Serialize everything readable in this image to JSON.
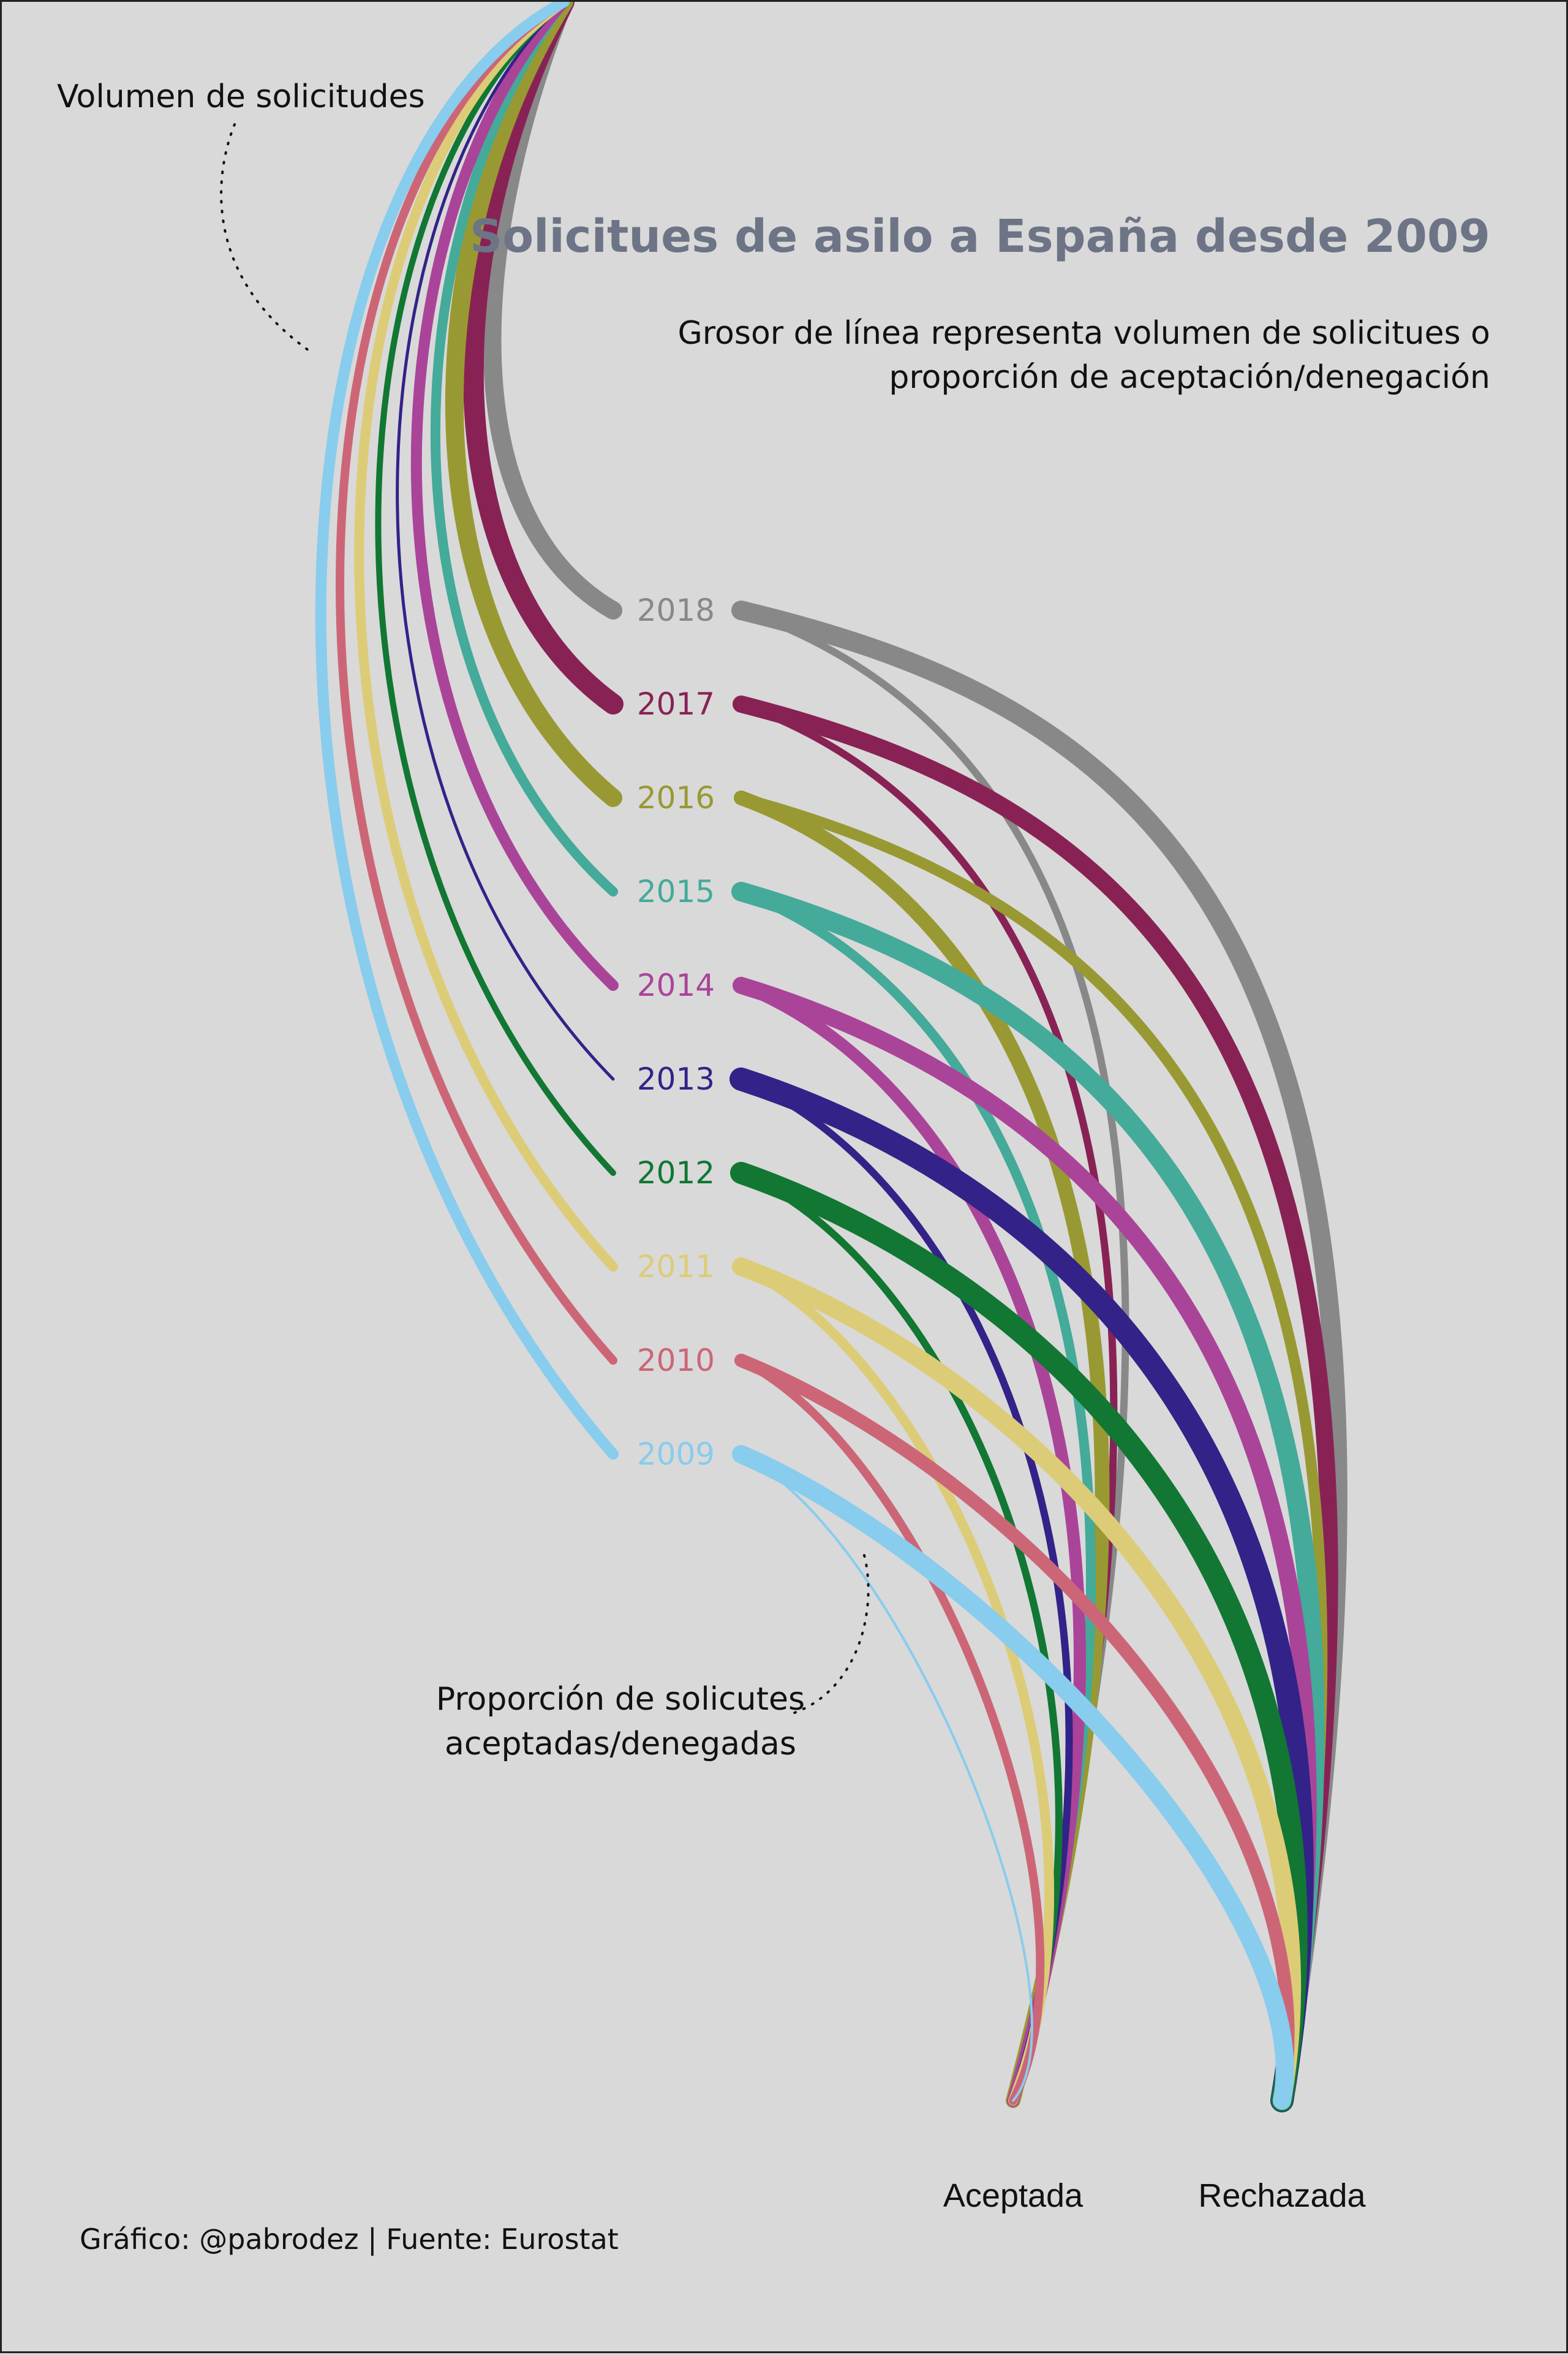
{
  "chart_data": {
    "type": "line",
    "title": "Solicitues de asilo a España desde 2009",
    "subtitle_lines": [
      "Grosor de línea representa volumen de solicitues o",
      "proporción de aceptación/denegación"
    ],
    "annotation_volume": "Volumen de solicitudes",
    "annotation_proportion_lines": [
      "Proporción de solicutes",
      "aceptadas/denegadas"
    ],
    "categories": [
      "Aceptada",
      "Rechazada"
    ],
    "credit": "Gráfico: @pabrodez | Fuente: Eurostat",
    "series": [
      {
        "name": "2009",
        "color": "#88ccee",
        "volume_width": 18,
        "accepted_width": 4,
        "rejected_width": 30
      },
      {
        "name": "2010",
        "color": "#cc6677",
        "volume_width": 14,
        "accepted_width": 14,
        "rejected_width": 22
      },
      {
        "name": "2011",
        "color": "#ddcc77",
        "volume_width": 16,
        "accepted_width": 16,
        "rejected_width": 30
      },
      {
        "name": "2012",
        "color": "#117733",
        "volume_width": 10,
        "accepted_width": 12,
        "rejected_width": 36
      },
      {
        "name": "2013",
        "color": "#332288",
        "volume_width": 5,
        "accepted_width": 12,
        "rejected_width": 38
      },
      {
        "name": "2014",
        "color": "#aa4499",
        "volume_width": 18,
        "accepted_width": 20,
        "rejected_width": 28
      },
      {
        "name": "2015",
        "color": "#44aa99",
        "volume_width": 16,
        "accepted_width": 16,
        "rejected_width": 32
      },
      {
        "name": "2016",
        "color": "#999933",
        "volume_width": 30,
        "accepted_width": 24,
        "rejected_width": 18
      },
      {
        "name": "2017",
        "color": "#882255",
        "volume_width": 34,
        "accepted_width": 12,
        "rejected_width": 28
      },
      {
        "name": "2018",
        "color": "#888888",
        "volume_width": 30,
        "accepted_width": 12,
        "rejected_width": 32
      }
    ]
  }
}
